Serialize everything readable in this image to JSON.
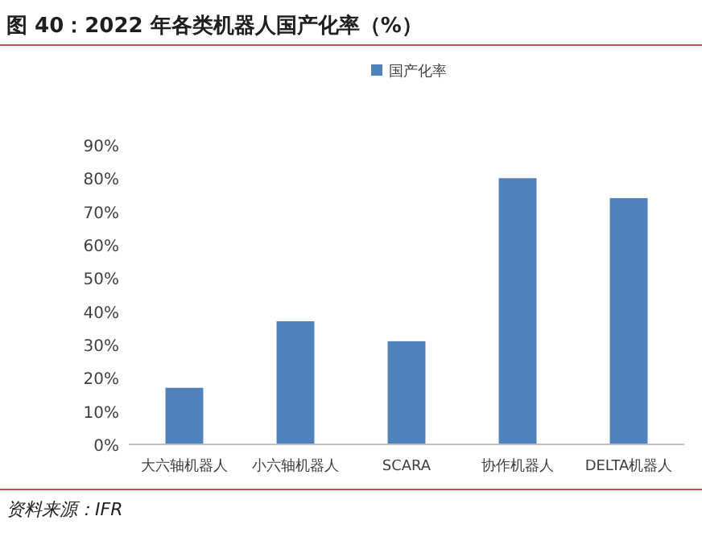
{
  "chart_data": {
    "type": "bar",
    "title": "图 40：2022 年各类机器人国产化率（%）",
    "categories": [
      "大六轴机器人",
      "小六轴机器人",
      "SCARA",
      "协作机器人",
      "DELTA机器人"
    ],
    "series": [
      {
        "name": "国产化率",
        "color": "#4f81bd",
        "values": [
          17,
          37,
          31,
          80,
          74
        ]
      }
    ],
    "ylim": [
      0,
      90
    ],
    "yticks": [
      {
        "value": 0,
        "label": "0%"
      },
      {
        "value": 10,
        "label": "10%"
      },
      {
        "value": 20,
        "label": "20%"
      },
      {
        "value": 30,
        "label": "30%"
      },
      {
        "value": 40,
        "label": "40%"
      },
      {
        "value": 50,
        "label": "50%"
      },
      {
        "value": 60,
        "label": "60%"
      },
      {
        "value": 70,
        "label": "70%"
      },
      {
        "value": 80,
        "label": "80%"
      },
      {
        "value": 90,
        "label": "90%"
      }
    ],
    "grid": false,
    "legend": "top",
    "annotations": [
      "资料来源：IFR"
    ]
  }
}
